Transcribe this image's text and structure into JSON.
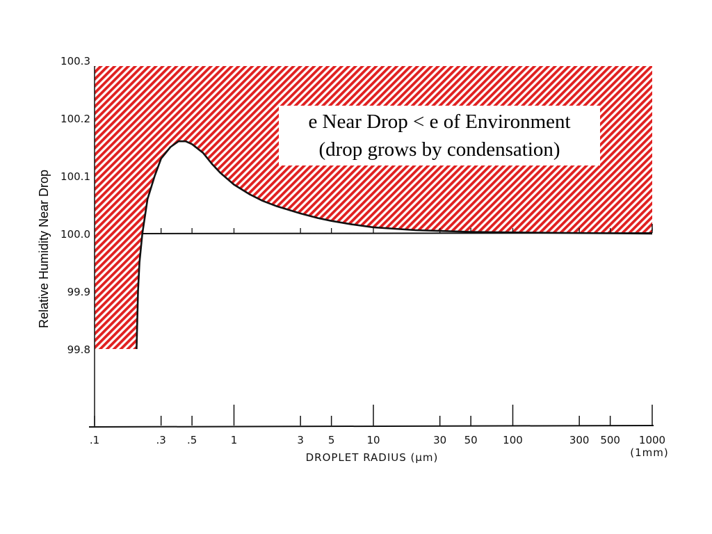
{
  "chart_data": {
    "type": "line",
    "xlabel": "DROPLET RADIUS (μm)",
    "xlabel_note": "(1mm)",
    "ylabel": "Relative Humidity Near Drop",
    "x_scale": "log",
    "xlim": [
      0.1,
      1000
    ],
    "ylim": [
      99.8,
      100.3
    ],
    "x_ticks": [
      ".1",
      ".3",
      ".5",
      "1",
      "3",
      "5",
      "10",
      "30",
      "50",
      "100",
      "300",
      "500",
      "1000"
    ],
    "x_tick_values": [
      0.1,
      0.3,
      0.5,
      1,
      3,
      5,
      10,
      30,
      50,
      100,
      300,
      500,
      1000
    ],
    "y_ticks": [
      "100.3",
      "100.2",
      "100.1",
      "100.0",
      "99.9",
      "99.8"
    ],
    "y_tick_values": [
      100.3,
      100.2,
      100.1,
      100.0,
      99.9,
      99.8
    ],
    "series": [
      {
        "x": [
          0.2,
          0.205,
          0.21,
          0.22,
          0.24,
          0.27,
          0.3,
          0.35,
          0.4,
          0.45,
          0.5,
          0.6,
          0.7,
          0.8,
          1,
          1.3,
          1.6,
          2,
          3,
          4,
          5,
          7,
          10,
          20,
          50,
          100,
          300,
          1000
        ],
        "y": [
          99.8,
          99.9,
          99.95,
          100.0,
          100.06,
          100.1,
          100.13,
          100.15,
          100.16,
          100.16,
          100.155,
          100.14,
          100.12,
          100.105,
          100.085,
          100.068,
          100.057,
          100.048,
          100.035,
          100.027,
          100.022,
          100.016,
          100.011,
          100.006,
          100.003,
          100.002,
          100.001,
          100.0
        ]
      }
    ],
    "shaded_region": "above curve — e Near Drop < e of Environment",
    "annotation": {
      "line1": "e Near Drop < e of Environment",
      "line2": "(drop grows by condensation)"
    },
    "colors": {
      "hatch": "#e02020",
      "curve": "#111111",
      "axis": "#111111"
    }
  }
}
